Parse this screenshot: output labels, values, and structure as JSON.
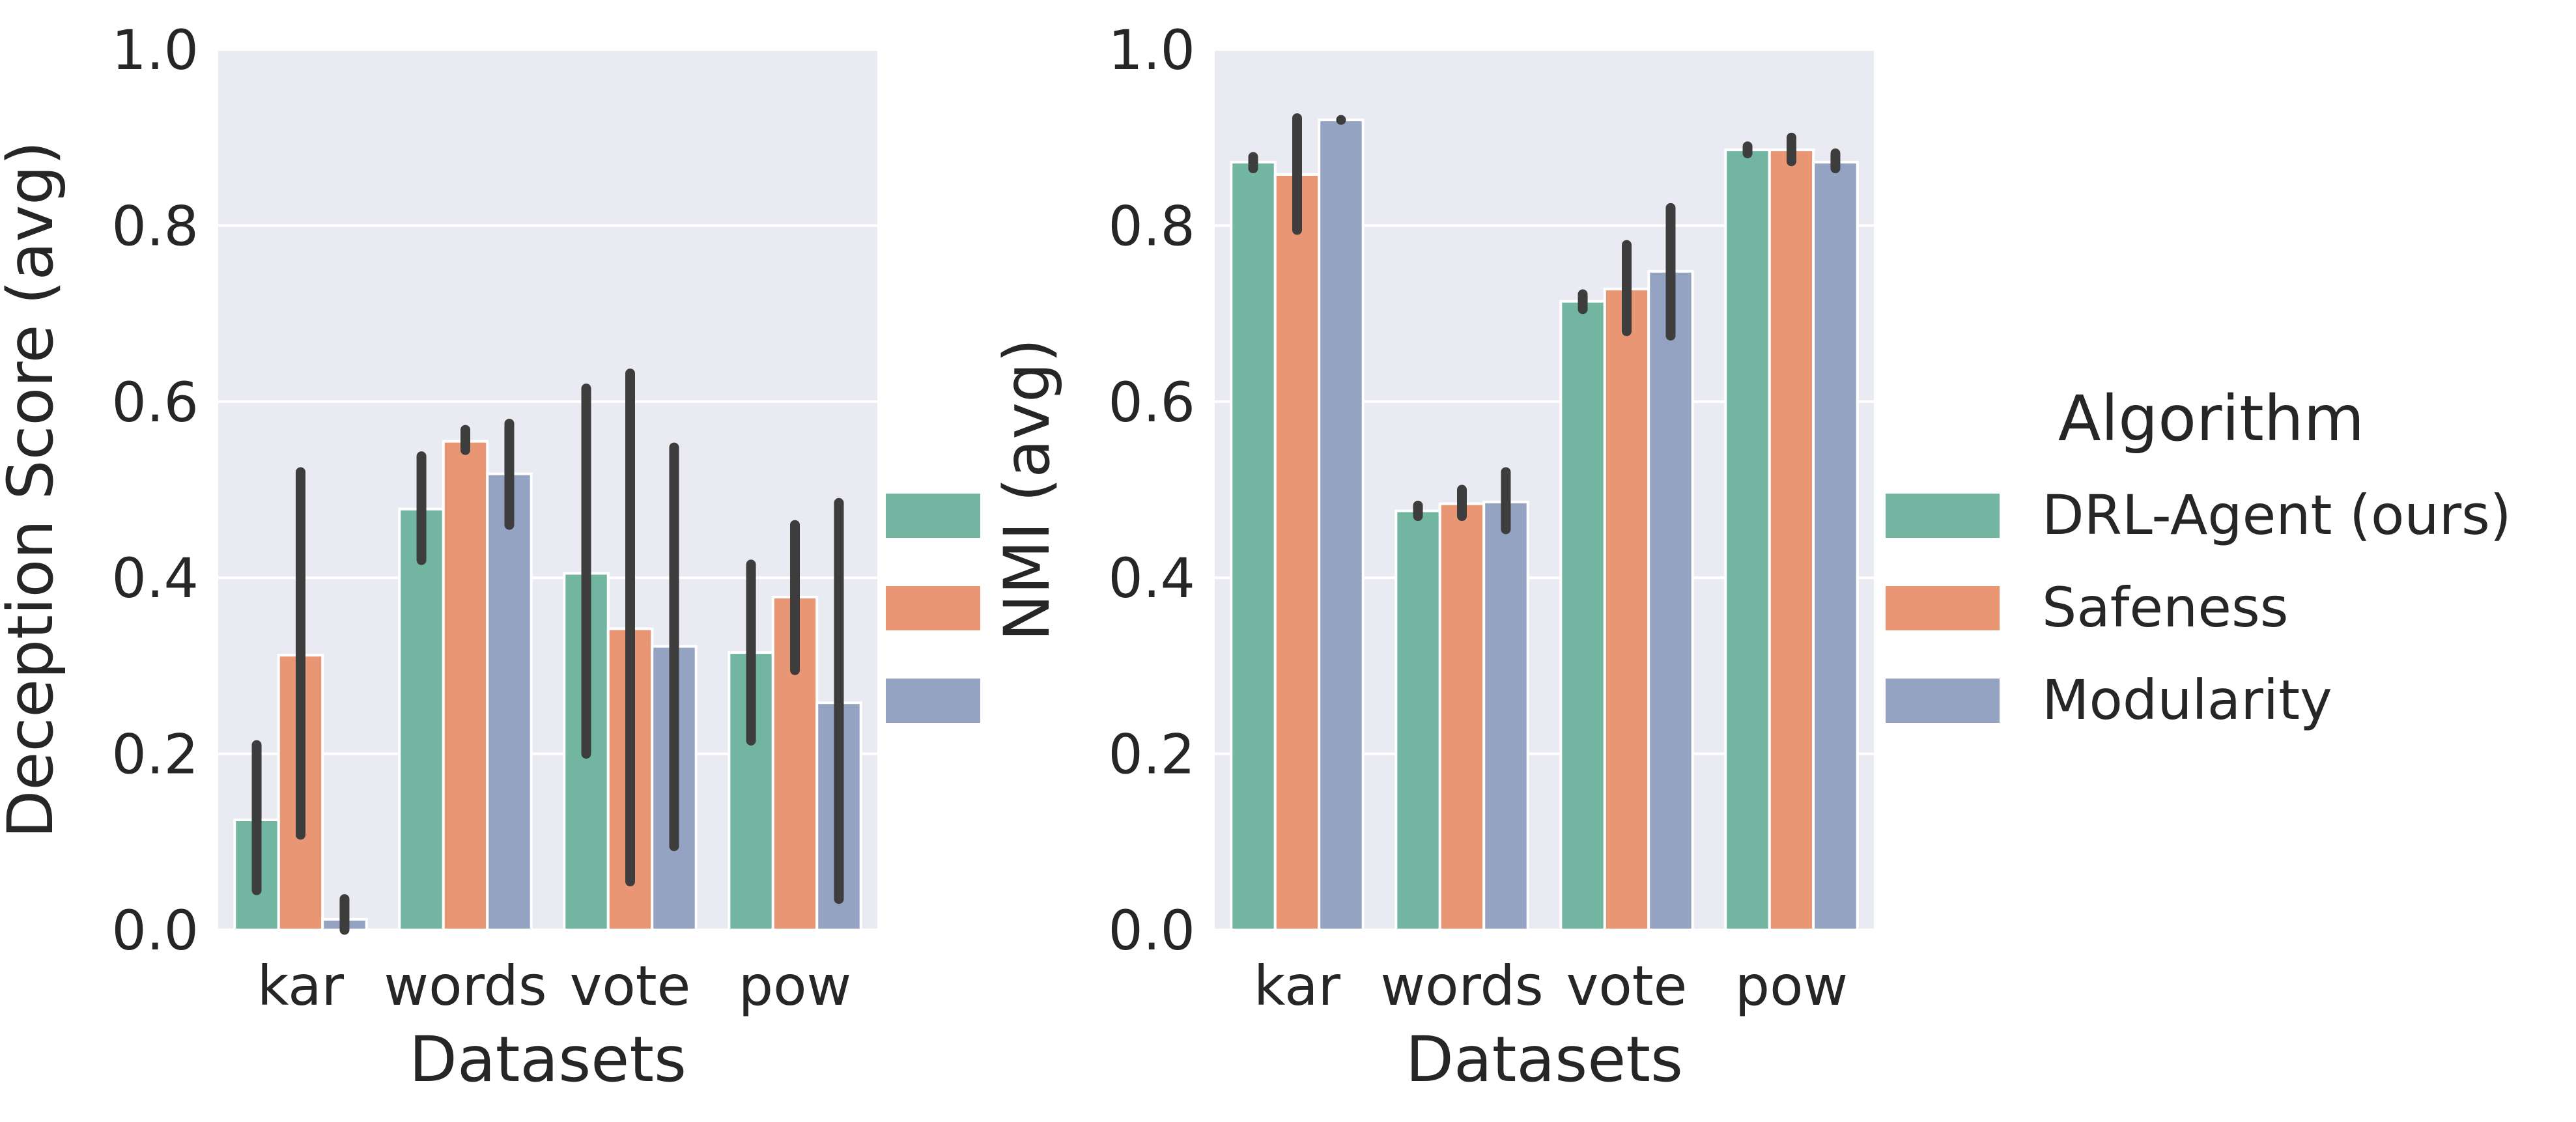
{
  "figure": {
    "legend": {
      "title": "Algorithm",
      "placement": "right",
      "entries": [
        "DRL-Agent (ours)",
        "Safeness",
        "Modularity"
      ]
    },
    "colors": {
      "DRL-Agent (ours)": "#72b6a1",
      "Safeness": "#e99675",
      "Modularity": "#95a3c3",
      "plot_background": "#eaeaf2",
      "grid": "#ffffff",
      "error_bar": "#3d3d3d"
    }
  },
  "chart_data": [
    {
      "type": "bar",
      "categories": [
        "kar",
        "words",
        "vote",
        "pow"
      ],
      "xlabel": "Datasets",
      "ylabel": "Deception Score (avg)",
      "ylim": [
        0,
        1.0
      ],
      "yticks": [
        "0.0",
        "0.2",
        "0.4",
        "0.6",
        "0.8",
        "1.0"
      ],
      "grid": true,
      "series": [
        {
          "name": "DRL-Agent (ours)",
          "values": [
            0.125,
            0.478,
            0.405,
            0.315
          ],
          "err_low": [
            0.045,
            0.42,
            0.2,
            0.215
          ],
          "err_high": [
            0.21,
            0.538,
            0.615,
            0.415
          ]
        },
        {
          "name": "Safeness",
          "values": [
            0.312,
            0.555,
            0.342,
            0.378
          ],
          "err_low": [
            0.108,
            0.545,
            0.055,
            0.295
          ],
          "err_high": [
            0.52,
            0.568,
            0.632,
            0.46
          ]
        },
        {
          "name": "Modularity",
          "values": [
            0.012,
            0.518,
            0.322,
            0.258
          ],
          "err_low": [
            0.0,
            0.46,
            0.095,
            0.035
          ],
          "err_high": [
            0.035,
            0.575,
            0.548,
            0.485
          ]
        }
      ]
    },
    {
      "type": "bar",
      "categories": [
        "kar",
        "words",
        "vote",
        "pow"
      ],
      "xlabel": "Datasets",
      "ylabel": "NMI (avg)",
      "ylim": [
        0,
        1.0
      ],
      "yticks": [
        "0.0",
        "0.2",
        "0.4",
        "0.6",
        "0.8",
        "1.0"
      ],
      "grid": true,
      "series": [
        {
          "name": "DRL-Agent (ours)",
          "values": [
            0.872,
            0.476,
            0.714,
            0.886
          ],
          "err_low": [
            0.865,
            0.47,
            0.705,
            0.882
          ],
          "err_high": [
            0.878,
            0.482,
            0.722,
            0.89
          ]
        },
        {
          "name": "Safeness",
          "values": [
            0.858,
            0.484,
            0.728,
            0.886
          ],
          "err_low": [
            0.795,
            0.47,
            0.68,
            0.873
          ],
          "err_high": [
            0.922,
            0.5,
            0.778,
            0.9
          ]
        },
        {
          "name": "Modularity",
          "values": [
            0.92,
            0.486,
            0.748,
            0.872
          ],
          "err_low": [
            0.92,
            0.455,
            0.675,
            0.865
          ],
          "err_high": [
            0.92,
            0.52,
            0.82,
            0.882
          ]
        }
      ]
    }
  ]
}
